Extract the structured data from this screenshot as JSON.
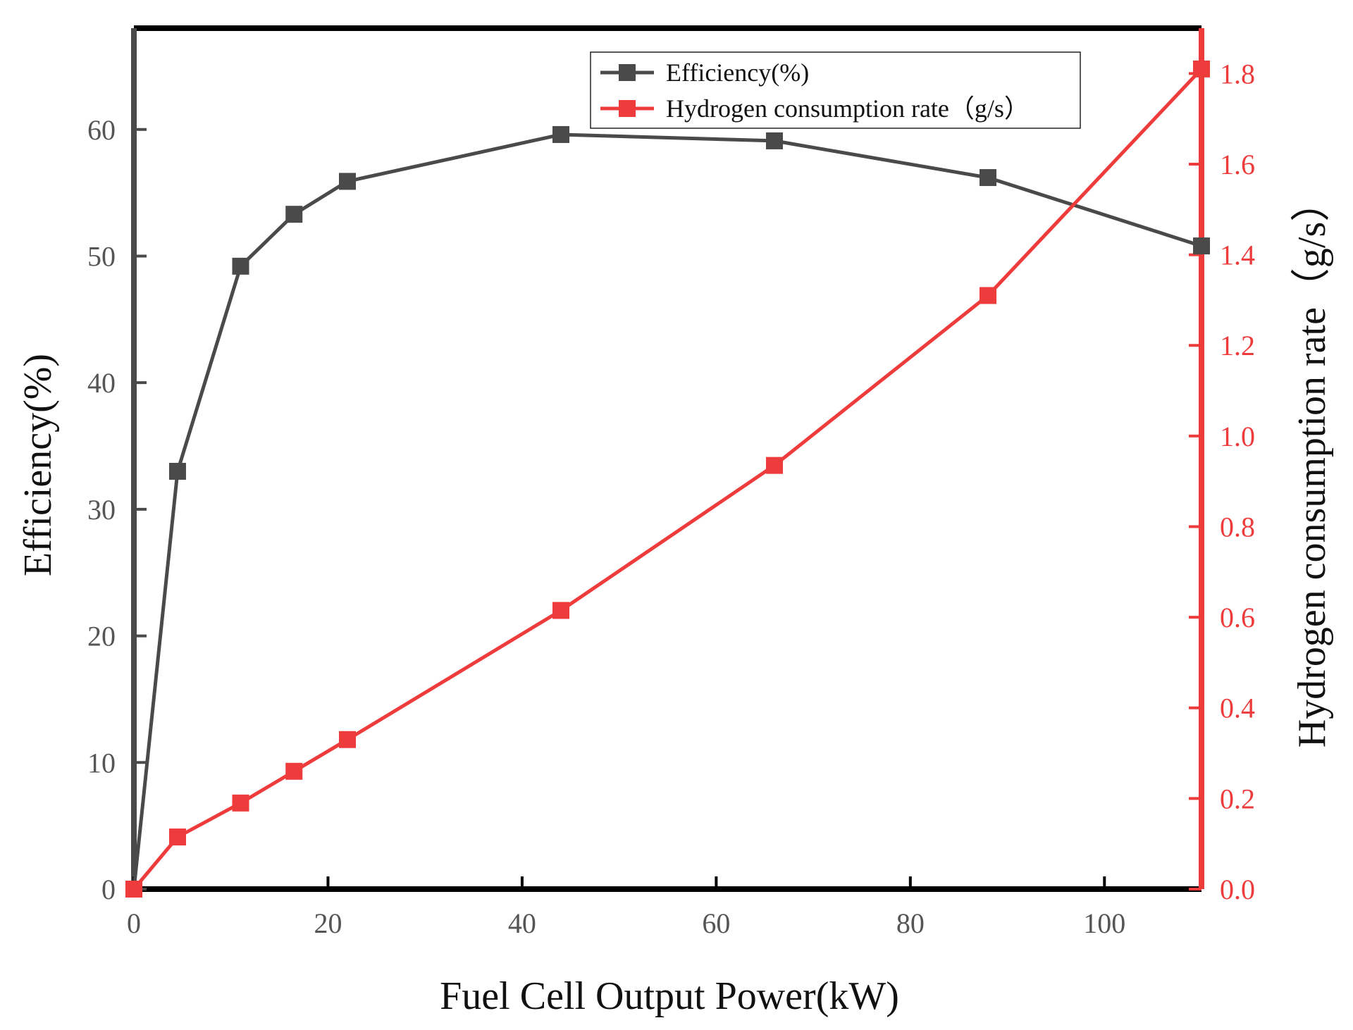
{
  "chart_data": {
    "type": "line",
    "title": "",
    "xlabel": "Fuel Cell Output Power(kW)",
    "ylabel_left": "Efficiency(%)",
    "ylabel_right": "Hydrogen consumption rate（g/s）",
    "xlim": [
      0,
      110
    ],
    "ylim_left": [
      0,
      68
    ],
    "ylim_right": [
      0,
      1.9
    ],
    "x_ticks": [
      "0",
      "20",
      "40",
      "60",
      "80",
      "100"
    ],
    "x_tick_values": [
      0,
      20,
      40,
      60,
      80,
      100
    ],
    "y_left_ticks": [
      "0",
      "10",
      "20",
      "30",
      "40",
      "50",
      "60"
    ],
    "y_left_tick_values": [
      0,
      10,
      20,
      30,
      40,
      50,
      60
    ],
    "y_right_ticks": [
      "0.0",
      "0.2",
      "0.4",
      "0.6",
      "0.8",
      "1.0",
      "1.2",
      "1.4",
      "1.6",
      "1.8"
    ],
    "y_right_tick_values": [
      0,
      0.2,
      0.4,
      0.6,
      0.8,
      1.0,
      1.2,
      1.4,
      1.6,
      1.8
    ],
    "legend_position": "top-right",
    "grid": false,
    "series": [
      {
        "name": "Efficiency(%)",
        "axis": "left",
        "color": "#4a4a4a",
        "x": [
          0,
          4.5,
          11,
          16.5,
          22,
          44,
          66,
          88,
          110
        ],
        "y": [
          0,
          33,
          49.2,
          53.3,
          55.9,
          59.6,
          59.1,
          56.2,
          50.8
        ]
      },
      {
        "name": "Hydrogen consumption rate（g/s）",
        "axis": "right",
        "color": "#ee3b3b",
        "x": [
          0,
          4.5,
          11,
          16.5,
          22,
          44,
          66,
          88,
          110
        ],
        "y": [
          0,
          0.115,
          0.19,
          0.26,
          0.33,
          0.615,
          0.935,
          1.31,
          1.81
        ]
      }
    ]
  }
}
